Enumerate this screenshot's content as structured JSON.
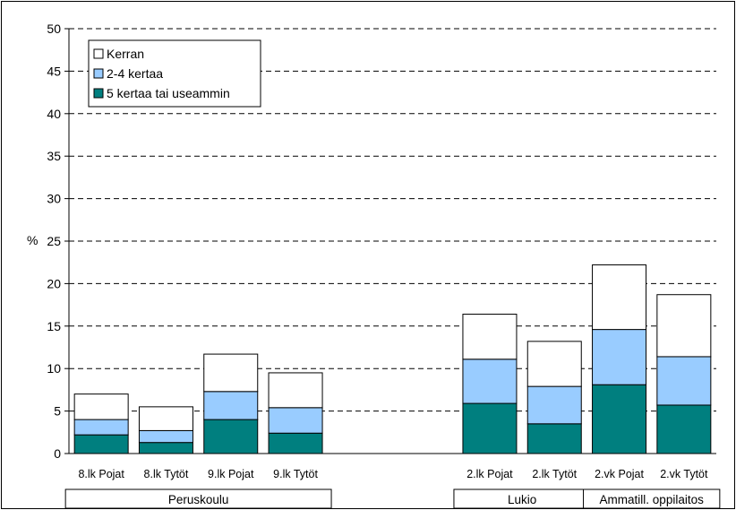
{
  "chart_data": {
    "type": "bar",
    "stacked": true,
    "ylabel": "%",
    "ylim": [
      0,
      50
    ],
    "yticks": [
      0,
      5,
      10,
      15,
      20,
      25,
      30,
      35,
      40,
      45,
      50
    ],
    "grid": "horizontal-dashed",
    "legend_position": "top-left",
    "categories": [
      "8.lk Pojat",
      "8.lk Tytöt",
      "9.lk Pojat",
      "9.lk Tytöt",
      "2.lk Pojat",
      "2.lk Tytöt",
      "2.vk Pojat",
      "2.vk Tytöt"
    ],
    "groups": [
      {
        "label": "Peruskoulu",
        "categories": [
          "8.lk Pojat",
          "8.lk Tytöt",
          "9.lk Pojat",
          "9.lk Tytöt"
        ]
      },
      {
        "label": "Lukio",
        "categories": [
          "2.lk Pojat",
          "2.lk Tytöt"
        ]
      },
      {
        "label": "Ammatill. oppilaitos",
        "categories": [
          "2.vk Pojat",
          "2.vk Tytöt"
        ]
      }
    ],
    "series": [
      {
        "name": "5 kertaa tai useammin",
        "color": "#007f7f",
        "values": [
          2.2,
          1.3,
          4.0,
          2.4,
          5.9,
          3.5,
          8.1,
          5.7
        ]
      },
      {
        "name": "2-4 kertaa",
        "color": "#99ccff",
        "values": [
          1.8,
          1.4,
          3.3,
          3.0,
          5.2,
          4.4,
          6.5,
          5.7
        ]
      },
      {
        "name": "Kerran",
        "color": "#ffffff",
        "values": [
          3.0,
          2.8,
          4.4,
          4.1,
          5.3,
          5.3,
          7.6,
          7.3
        ]
      }
    ]
  }
}
